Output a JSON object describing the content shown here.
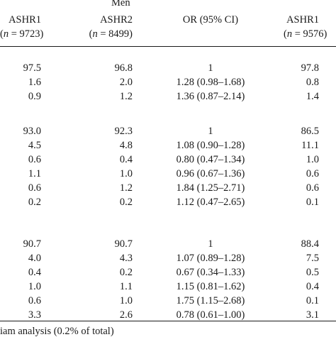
{
  "header": {
    "group_label": "Men",
    "col1": {
      "title": "ASHR1",
      "n_var": "n",
      "n_rest": " = 9723)"
    },
    "col2": {
      "title": "ASHR2",
      "n_var": "n",
      "n_rest": " = 8499)"
    },
    "col3": {
      "title": "OR (95% CI)"
    },
    "col4": {
      "title": "ASHR1",
      "n_var": "n",
      "n_rest": " = 9576)"
    }
  },
  "groups": [
    {
      "rows": [
        {
          "a": "97.5",
          "b": "96.8",
          "or": "1",
          "c": "97.8"
        },
        {
          "a": "1.6",
          "b": "2.0",
          "or": "1.28 (0.98–1.68)",
          "c": "0.8"
        },
        {
          "a": "0.9",
          "b": "1.2",
          "or": "1.36 (0.87–2.14)",
          "c": "1.4"
        }
      ]
    },
    {
      "rows": [
        {
          "a": "93.0",
          "b": "92.3",
          "or": "1",
          "c": "86.5"
        },
        {
          "a": "4.5",
          "b": "4.8",
          "or": "1.08 (0.90–1.28)",
          "c": "11.1"
        },
        {
          "a": "0.6",
          "b": "0.4",
          "or": "0.80 (0.47–1.34)",
          "c": "1.0"
        },
        {
          "a": "1.1",
          "b": "1.0",
          "or": "0.96 (0.67–1.36)",
          "c": "0.6"
        },
        {
          "a": "0.6",
          "b": "1.2",
          "or": "1.84 (1.25–2.71)",
          "c": "0.6"
        },
        {
          "a": "0.2",
          "b": "0.2",
          "or": "1.12 (0.47–2.65)",
          "c": "0.1"
        }
      ]
    },
    {
      "rows": [
        {
          "a": "90.7",
          "b": "90.7",
          "or": "1",
          "c": "88.4"
        },
        {
          "a": "4.0",
          "b": "4.3",
          "or": "1.07 (0.89–1.28)",
          "c": "7.5"
        },
        {
          "a": "0.4",
          "b": "0.2",
          "or": "0.67 (0.34–1.33)",
          "c": "0.5"
        },
        {
          "a": "1.0",
          "b": "1.1",
          "or": "1.15 (0.81–1.62)",
          "c": "0.4"
        },
        {
          "a": "0.6",
          "b": "1.0",
          "or": "1.75 (1.15–2.68)",
          "c": "0.1"
        },
        {
          "a": "3.3",
          "b": "2.6",
          "or": "0.78 (0.61–1.00)",
          "c": "3.1"
        }
      ]
    }
  ],
  "footnote": "iam analysis (0.2% of total)"
}
